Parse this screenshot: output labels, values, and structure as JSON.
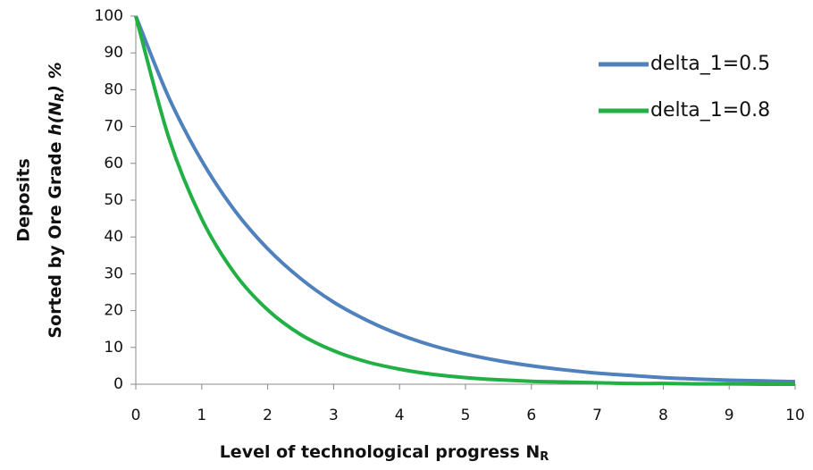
{
  "chart_data": {
    "type": "line",
    "x_label": [
      "Level of technological progress N",
      "R"
    ],
    "y_label": [
      "Deposits",
      "Sorted by Ore Grade ",
      "h(N",
      "R",
      ") %"
    ],
    "x": [
      0,
      0.5,
      1,
      1.5,
      2,
      2.5,
      3,
      3.5,
      4,
      4.5,
      5,
      5.5,
      6,
      6.5,
      7,
      7.5,
      8,
      8.5,
      9,
      9.5,
      10
    ],
    "series": [
      {
        "name": "delta_1=0.5",
        "color": "#4f81bd",
        "values": [
          100,
          77.9,
          60.7,
          47.2,
          36.8,
          28.7,
          22.3,
          17.4,
          13.5,
          10.5,
          8.2,
          6.4,
          5.0,
          3.9,
          3.0,
          2.4,
          1.8,
          1.4,
          1.1,
          0.9,
          0.7
        ]
      },
      {
        "name": "delta_1=0.8",
        "color": "#22b045",
        "values": [
          100,
          67.0,
          44.9,
          30.1,
          20.2,
          13.5,
          9.1,
          6.1,
          4.1,
          2.7,
          1.8,
          1.2,
          0.8,
          0.6,
          0.4,
          0.2,
          0.2,
          0.1,
          0.1,
          0.0,
          0.0
        ]
      }
    ],
    "xlim": [
      0,
      10
    ],
    "xticks": [
      0,
      1,
      2,
      3,
      4,
      5,
      6,
      7,
      8,
      9,
      10
    ],
    "ylim": [
      0,
      100
    ],
    "yticks": [
      0,
      10,
      20,
      30,
      40,
      50,
      60,
      70,
      80,
      90,
      100
    ],
    "grid": false,
    "legend": "upper right"
  }
}
